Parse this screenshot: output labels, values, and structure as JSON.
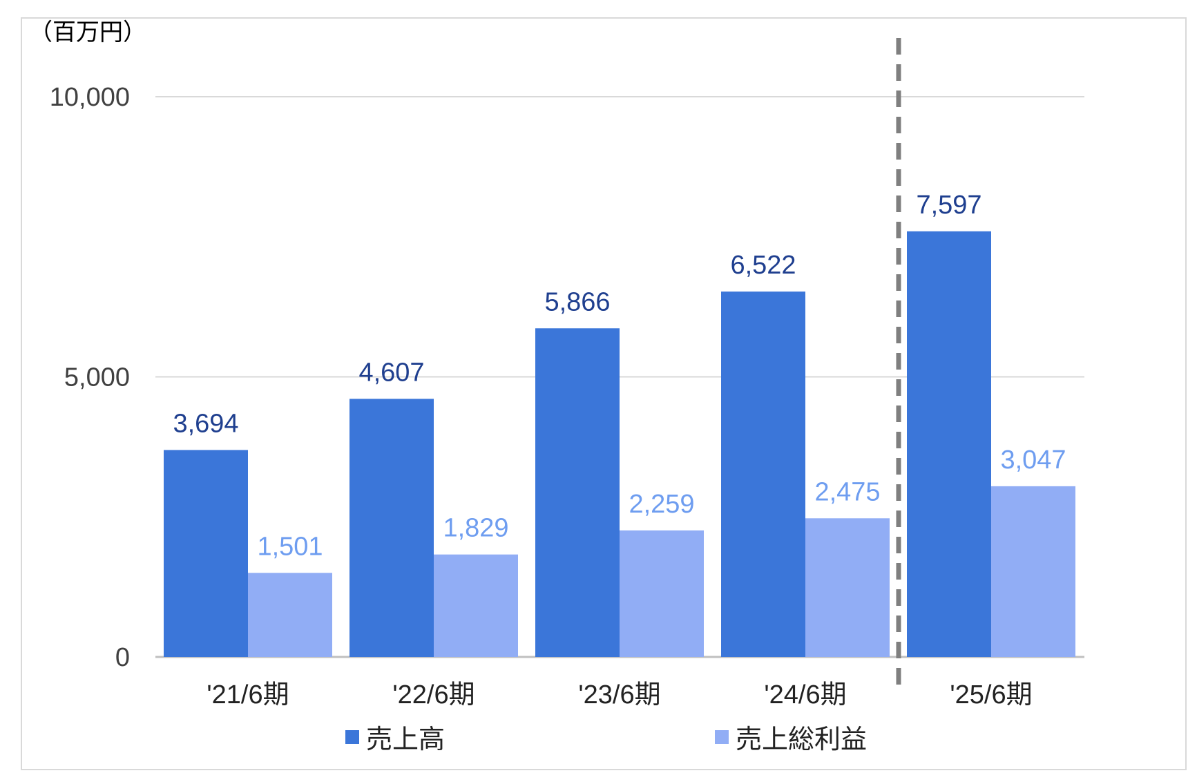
{
  "chart_data": {
    "type": "bar",
    "unit_label": "（百万円）",
    "categories": [
      "'21/6期",
      "'22/6期",
      "'23/6期",
      "'24/6期",
      "'25/6期"
    ],
    "series": [
      {
        "name": "売上高",
        "values": [
          3694,
          4607,
          5866,
          6522,
          7597
        ],
        "labels": [
          "3,694",
          "4,607",
          "5,866",
          "6,522",
          "7,597"
        ],
        "color": "#3b76d9",
        "label_color": "#1f3f8f"
      },
      {
        "name": "売上総利益",
        "values": [
          1501,
          1829,
          2259,
          2475,
          3047
        ],
        "labels": [
          "1,501",
          "1,829",
          "2,259",
          "2,475",
          "3,047"
        ],
        "color": "#91adf5",
        "label_color": "#6e9df0"
      }
    ],
    "ylim": [
      0,
      10000
    ],
    "yticks": [
      0,
      5000,
      10000
    ],
    "ytick_labels": [
      "0",
      "5,000",
      "10,000"
    ],
    "grid": true,
    "legend_position": "bottom",
    "divider_before_category": "'25/6期"
  }
}
